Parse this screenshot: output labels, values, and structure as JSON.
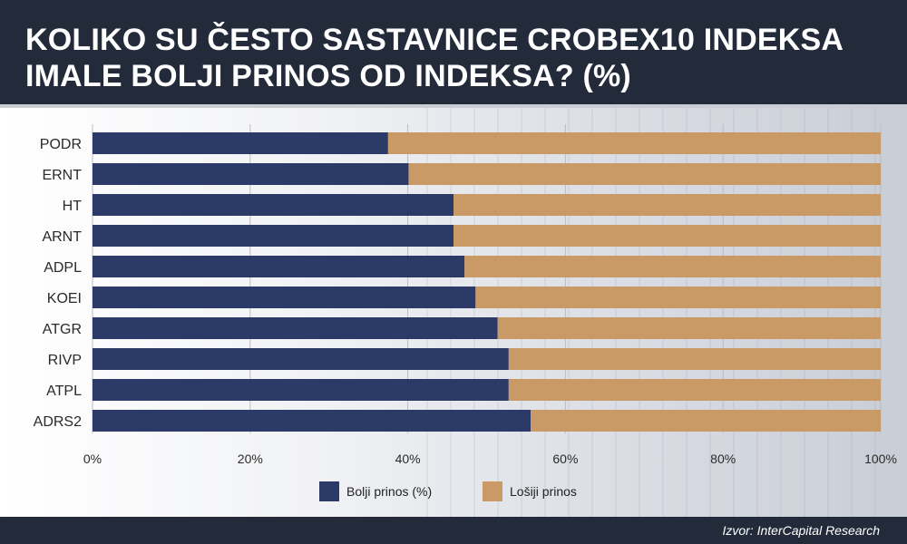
{
  "header": {
    "title": "KOLIKO SU ČESTO SASTAVNICE CROBEX10 INDEKSA IMALE BOLJI PRINOS OD INDEKSA? (%)"
  },
  "footer": {
    "source": "Izvor: InterCapital Research"
  },
  "chart_data": {
    "type": "bar",
    "orientation": "horizontal",
    "stacked": true,
    "title": "KOLIKO SU ČESTO SASTAVNICE CROBEX10 INDEKSA IMALE BOLJI PRINOS OD INDEKSA? (%)",
    "categories": [
      "PODR",
      "ERNT",
      "HT",
      "ARNT",
      "ADPL",
      "KOEI",
      "ATGR",
      "RIVP",
      "ATPL",
      "ADRS2"
    ],
    "series": [
      {
        "name": "Bolji prinos (%)",
        "color": "#2b3a67",
        "values": [
          37.5,
          40.1,
          45.8,
          45.8,
          47.2,
          48.6,
          51.4,
          52.8,
          52.8,
          55.6
        ]
      },
      {
        "name": "Lošiji prinos",
        "color": "#c99a66",
        "values": [
          62.5,
          59.9,
          54.2,
          54.2,
          52.8,
          51.4,
          48.6,
          47.2,
          47.2,
          44.4
        ]
      }
    ],
    "xlim": [
      0,
      100
    ],
    "xticks": [
      "0%",
      "20%",
      "40%",
      "60%",
      "80%",
      "100%"
    ],
    "xlabel": "",
    "ylabel": "",
    "grid": true,
    "legend": "bottom-center"
  }
}
